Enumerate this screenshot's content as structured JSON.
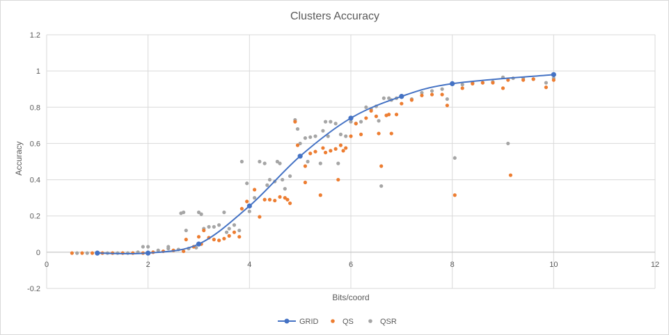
{
  "chart_data": {
    "type": "scatter",
    "title": "Clusters Accuracy",
    "xlabel": "Bits/coord",
    "ylabel": "Accuracy",
    "xlim": [
      0,
      12
    ],
    "ylim": [
      -0.2,
      1.2
    ],
    "x_ticks": [
      "0",
      "2",
      "4",
      "6",
      "8",
      "10",
      "12"
    ],
    "y_ticks": [
      "-0.2",
      "0",
      "0.2",
      "0.4",
      "0.6",
      "0.8",
      "1",
      "1.2"
    ],
    "grid": true,
    "legend_position": "bottom",
    "colors": {
      "GRID": "#4472c4",
      "QS": "#ed7d31",
      "QSR": "#a5a5a5"
    },
    "series": [
      {
        "name": "GRID",
        "style": "line-markers",
        "points": [
          [
            1,
            -0.005
          ],
          [
            2,
            -0.005
          ],
          [
            3,
            0.045
          ],
          [
            4,
            0.255
          ],
          [
            5,
            0.53
          ],
          [
            6,
            0.74
          ],
          [
            7,
            0.86
          ],
          [
            8,
            0.93
          ],
          [
            10,
            0.98
          ]
        ]
      },
      {
        "name": "QS",
        "style": "markers",
        "points": [
          [
            0.5,
            -0.005
          ],
          [
            0.7,
            -0.005
          ],
          [
            0.9,
            -0.005
          ],
          [
            1.1,
            -0.005
          ],
          [
            1.3,
            -0.005
          ],
          [
            1.5,
            -0.005
          ],
          [
            1.7,
            -0.005
          ],
          [
            1.9,
            -0.005
          ],
          [
            2.1,
            0.0
          ],
          [
            2.3,
            0.005
          ],
          [
            2.5,
            0.01
          ],
          [
            2.7,
            0.005
          ],
          [
            2.75,
            0.07
          ],
          [
            2.9,
            0.03
          ],
          [
            3.0,
            0.085
          ],
          [
            3.05,
            0.045
          ],
          [
            3.1,
            0.12
          ],
          [
            3.2,
            0.08
          ],
          [
            3.3,
            0.07
          ],
          [
            3.4,
            0.065
          ],
          [
            3.5,
            0.075
          ],
          [
            3.6,
            0.09
          ],
          [
            3.7,
            0.11
          ],
          [
            3.8,
            0.085
          ],
          [
            3.85,
            0.24
          ],
          [
            3.95,
            0.28
          ],
          [
            4.1,
            0.345
          ],
          [
            4.2,
            0.195
          ],
          [
            4.3,
            0.29
          ],
          [
            4.4,
            0.29
          ],
          [
            4.5,
            0.285
          ],
          [
            4.6,
            0.305
          ],
          [
            4.7,
            0.3
          ],
          [
            4.75,
            0.29
          ],
          [
            4.8,
            0.27
          ],
          [
            4.9,
            0.72
          ],
          [
            4.95,
            0.59
          ],
          [
            5.1,
            0.385
          ],
          [
            5.1,
            0.475
          ],
          [
            5.2,
            0.545
          ],
          [
            5.3,
            0.555
          ],
          [
            5.4,
            0.315
          ],
          [
            5.45,
            0.575
          ],
          [
            5.5,
            0.55
          ],
          [
            5.6,
            0.56
          ],
          [
            5.7,
            0.57
          ],
          [
            5.75,
            0.4
          ],
          [
            5.8,
            0.59
          ],
          [
            5.85,
            0.56
          ],
          [
            5.9,
            0.575
          ],
          [
            6.0,
            0.64
          ],
          [
            6.1,
            0.71
          ],
          [
            6.2,
            0.65
          ],
          [
            6.3,
            0.74
          ],
          [
            6.4,
            0.78
          ],
          [
            6.5,
            0.75
          ],
          [
            6.55,
            0.655
          ],
          [
            6.6,
            0.475
          ],
          [
            6.7,
            0.755
          ],
          [
            6.75,
            0.76
          ],
          [
            6.8,
            0.655
          ],
          [
            6.9,
            0.76
          ],
          [
            7.0,
            0.82
          ],
          [
            7.2,
            0.84
          ],
          [
            7.4,
            0.865
          ],
          [
            7.6,
            0.87
          ],
          [
            7.8,
            0.87
          ],
          [
            7.9,
            0.81
          ],
          [
            8.05,
            0.315
          ],
          [
            8.2,
            0.905
          ],
          [
            8.4,
            0.93
          ],
          [
            8.6,
            0.935
          ],
          [
            8.8,
            0.935
          ],
          [
            9.0,
            0.905
          ],
          [
            9.1,
            0.95
          ],
          [
            9.15,
            0.425
          ],
          [
            9.4,
            0.95
          ],
          [
            9.6,
            0.955
          ],
          [
            9.85,
            0.91
          ],
          [
            10.0,
            0.95
          ]
        ]
      },
      {
        "name": "QSR",
        "style": "markers",
        "points": [
          [
            0.6,
            -0.005
          ],
          [
            0.8,
            -0.005
          ],
          [
            1.0,
            -0.005
          ],
          [
            1.2,
            -0.005
          ],
          [
            1.4,
            -0.005
          ],
          [
            1.6,
            -0.005
          ],
          [
            1.8,
            0.0
          ],
          [
            1.9,
            0.03
          ],
          [
            2.0,
            0.03
          ],
          [
            2.2,
            0.01
          ],
          [
            2.4,
            0.02
          ],
          [
            2.4,
            0.03
          ],
          [
            2.6,
            0.015
          ],
          [
            2.65,
            0.215
          ],
          [
            2.7,
            0.22
          ],
          [
            2.75,
            0.12
          ],
          [
            2.8,
            0.02
          ],
          [
            2.95,
            0.025
          ],
          [
            3.0,
            0.22
          ],
          [
            3.05,
            0.21
          ],
          [
            3.1,
            0.13
          ],
          [
            3.2,
            0.14
          ],
          [
            3.3,
            0.14
          ],
          [
            3.4,
            0.15
          ],
          [
            3.5,
            0.22
          ],
          [
            3.55,
            0.11
          ],
          [
            3.6,
            0.13
          ],
          [
            3.7,
            0.15
          ],
          [
            3.8,
            0.12
          ],
          [
            3.85,
            0.5
          ],
          [
            3.95,
            0.38
          ],
          [
            4.0,
            0.225
          ],
          [
            4.1,
            0.3
          ],
          [
            4.2,
            0.5
          ],
          [
            4.3,
            0.49
          ],
          [
            4.35,
            0.37
          ],
          [
            4.4,
            0.4
          ],
          [
            4.5,
            0.39
          ],
          [
            4.55,
            0.5
          ],
          [
            4.6,
            0.49
          ],
          [
            4.65,
            0.4
          ],
          [
            4.7,
            0.35
          ],
          [
            4.8,
            0.42
          ],
          [
            4.9,
            0.73
          ],
          [
            4.95,
            0.68
          ],
          [
            5.0,
            0.6
          ],
          [
            5.1,
            0.63
          ],
          [
            5.15,
            0.5
          ],
          [
            5.2,
            0.635
          ],
          [
            5.3,
            0.64
          ],
          [
            5.4,
            0.49
          ],
          [
            5.45,
            0.67
          ],
          [
            5.5,
            0.72
          ],
          [
            5.55,
            0.64
          ],
          [
            5.6,
            0.72
          ],
          [
            5.7,
            0.71
          ],
          [
            5.75,
            0.49
          ],
          [
            5.8,
            0.65
          ],
          [
            5.9,
            0.64
          ],
          [
            6.0,
            0.72
          ],
          [
            6.1,
            0.71
          ],
          [
            6.2,
            0.72
          ],
          [
            6.3,
            0.8
          ],
          [
            6.4,
            0.79
          ],
          [
            6.5,
            0.805
          ],
          [
            6.55,
            0.725
          ],
          [
            6.6,
            0.365
          ],
          [
            6.65,
            0.85
          ],
          [
            6.75,
            0.85
          ],
          [
            6.8,
            0.84
          ],
          [
            6.9,
            0.85
          ],
          [
            7.0,
            0.855
          ],
          [
            7.2,
            0.845
          ],
          [
            7.4,
            0.88
          ],
          [
            7.6,
            0.89
          ],
          [
            7.8,
            0.9
          ],
          [
            7.9,
            0.845
          ],
          [
            8.05,
            0.52
          ],
          [
            8.2,
            0.925
          ],
          [
            8.4,
            0.935
          ],
          [
            8.6,
            0.935
          ],
          [
            8.8,
            0.94
          ],
          [
            9.0,
            0.965
          ],
          [
            9.1,
            0.6
          ],
          [
            9.2,
            0.96
          ],
          [
            9.4,
            0.96
          ],
          [
            9.6,
            0.955
          ],
          [
            9.85,
            0.935
          ],
          [
            10.0,
            0.96
          ]
        ]
      }
    ]
  }
}
